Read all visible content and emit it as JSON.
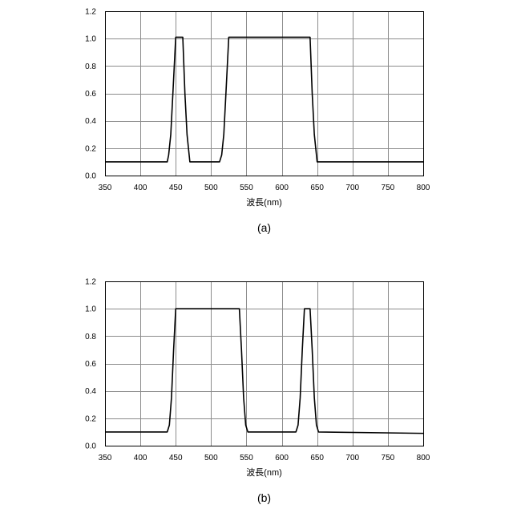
{
  "chart_data": [
    {
      "type": "line",
      "caption": "(a)",
      "xlabel": "波長(nm)",
      "ylabel": "",
      "xlim": [
        350,
        800
      ],
      "ylim": [
        0,
        1.2
      ],
      "xticks": [
        350,
        400,
        450,
        500,
        550,
        600,
        650,
        700,
        750,
        800
      ],
      "yticks": [
        0.0,
        0.2,
        0.4,
        0.6,
        0.8,
        1.0,
        1.2
      ],
      "xtick_labels": [
        "350",
        "400",
        "450",
        "500",
        "550",
        "600",
        "650",
        "700",
        "750",
        "800"
      ],
      "ytick_labels": [
        "0.0",
        "0.2",
        "0.4",
        "0.6",
        "0.8",
        "1.0",
        "1.2"
      ],
      "grid": true,
      "series": [
        {
          "x": [
            350,
            438,
            440,
            443,
            446,
            450,
            460,
            463,
            466,
            470,
            480,
            512,
            515,
            518,
            521,
            525,
            640,
            643,
            646,
            650,
            800
          ],
          "y": [
            0.1,
            0.1,
            0.15,
            0.3,
            0.6,
            1.01,
            1.01,
            0.6,
            0.3,
            0.1,
            0.1,
            0.1,
            0.15,
            0.3,
            0.6,
            1.01,
            1.01,
            0.6,
            0.3,
            0.1,
            0.1
          ]
        }
      ]
    },
    {
      "type": "line",
      "caption": "(b)",
      "xlabel": "波長(nm)",
      "ylabel": "",
      "xlim": [
        350,
        800
      ],
      "ylim": [
        0,
        1.2
      ],
      "xticks": [
        350,
        400,
        450,
        500,
        550,
        600,
        650,
        700,
        750,
        800
      ],
      "yticks": [
        0.0,
        0.2,
        0.4,
        0.6,
        0.8,
        1.0,
        1.2
      ],
      "xtick_labels": [
        "350",
        "400",
        "450",
        "500",
        "550",
        "600",
        "650",
        "700",
        "750",
        "800"
      ],
      "ytick_labels": [
        "0.0",
        "0.2",
        "0.4",
        "0.6",
        "0.8",
        "1.0",
        "1.2"
      ],
      "grid": true,
      "series": [
        {
          "x": [
            350,
            438,
            441,
            444,
            447,
            450,
            540,
            543,
            546,
            549,
            552,
            620,
            623,
            626,
            629,
            632,
            640,
            643,
            646,
            649,
            652,
            800
          ],
          "y": [
            0.1,
            0.1,
            0.15,
            0.35,
            0.7,
            1.0,
            1.0,
            0.7,
            0.35,
            0.15,
            0.1,
            0.1,
            0.15,
            0.35,
            0.7,
            1.0,
            1.0,
            0.7,
            0.35,
            0.15,
            0.1,
            0.09
          ]
        }
      ]
    }
  ]
}
